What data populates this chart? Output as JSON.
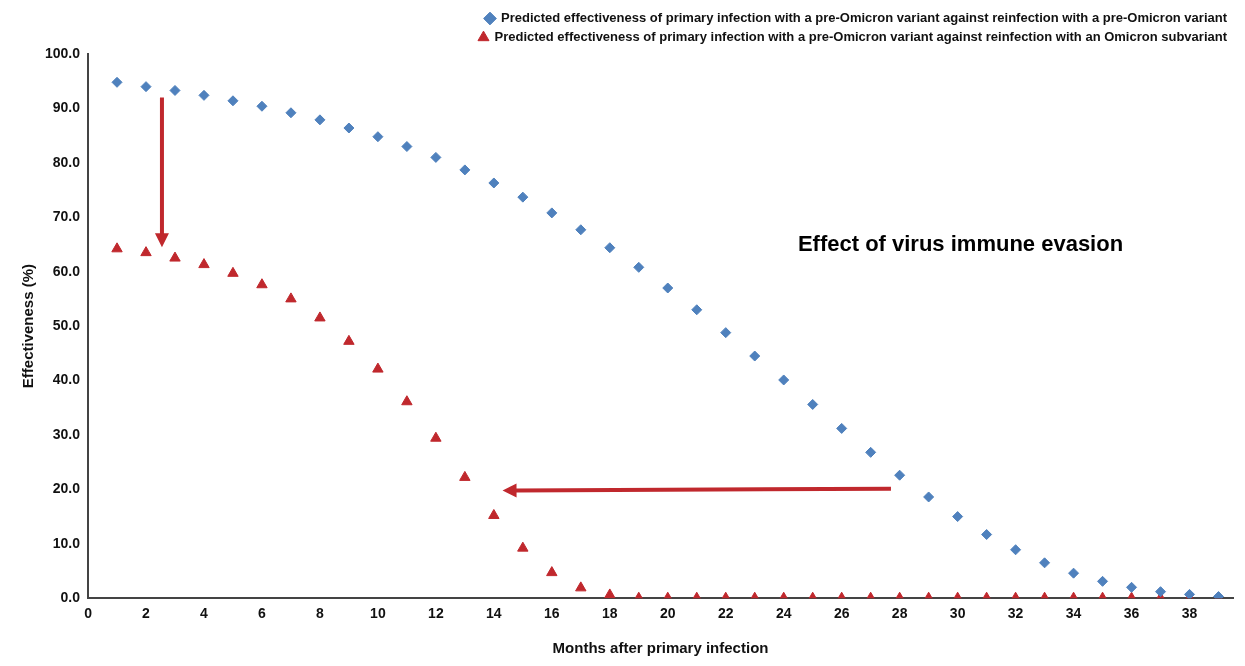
{
  "chart_data": {
    "type": "scatter",
    "xlabel": "Months after primary infection",
    "ylabel": "Effectiveness (%)",
    "x": [
      1,
      2,
      3,
      4,
      5,
      6,
      7,
      8,
      9,
      10,
      11,
      12,
      13,
      14,
      15,
      16,
      17,
      18,
      19,
      20,
      21,
      22,
      23,
      24,
      25,
      26,
      27,
      28,
      29,
      30,
      31,
      32,
      33,
      34,
      35,
      36,
      37,
      38,
      39
    ],
    "series": [
      {
        "name": "Predicted effectiveness of primary infection with a pre-Omicron variant against reinfection with a pre-Omicron variant",
        "color": "#4f81bd",
        "marker": "diamond",
        "values": [
          94.8,
          94.0,
          93.3,
          92.4,
          91.4,
          90.4,
          89.2,
          87.9,
          86.4,
          84.8,
          83.0,
          81.0,
          78.7,
          76.3,
          73.7,
          70.8,
          67.7,
          64.4,
          60.8,
          57.0,
          53.0,
          48.8,
          44.5,
          40.1,
          35.6,
          31.2,
          26.8,
          22.6,
          18.6,
          15.0,
          11.7,
          8.9,
          6.5,
          4.6,
          3.1,
          2.0,
          1.2,
          0.7,
          0.3
        ]
      },
      {
        "name": "Predicted effectiveness of primary infection with a pre-Omicron variant against reinfection with an Omicron subvariant",
        "color": "#c0282d",
        "marker": "triangle",
        "values": [
          64.2,
          63.5,
          62.5,
          61.3,
          59.7,
          57.6,
          55.0,
          51.5,
          47.2,
          42.1,
          36.1,
          29.4,
          22.2,
          15.2,
          9.2,
          4.7,
          1.9,
          0.6,
          0,
          0,
          0,
          0,
          0,
          0,
          0,
          0,
          0,
          0,
          0,
          0,
          0,
          0,
          0,
          0,
          0,
          0,
          0,
          0,
          0
        ]
      }
    ],
    "annotations": [
      "Effect of virus immune evasion"
    ],
    "xlim": [
      0,
      39.5
    ],
    "xticks": [
      0,
      2,
      4,
      6,
      8,
      10,
      12,
      14,
      16,
      18,
      20,
      22,
      24,
      26,
      28,
      30,
      32,
      34,
      36,
      38
    ],
    "ylim": [
      0,
      100
    ],
    "yticks": [
      {
        "value": 0,
        "label": "0.0"
      },
      {
        "value": 10,
        "label": "10.0"
      },
      {
        "value": 20,
        "label": "20.0"
      },
      {
        "value": 30,
        "label": "30.0"
      },
      {
        "value": 40,
        "label": "40.0"
      },
      {
        "value": 50,
        "label": "50.0"
      },
      {
        "value": 60,
        "label": "60.0"
      },
      {
        "value": 70,
        "label": "70.0"
      },
      {
        "value": 80,
        "label": "80.0"
      },
      {
        "value": 90,
        "label": "90.0"
      },
      {
        "value": 100,
        "label": "100.0"
      }
    ],
    "legend": "top right",
    "grid": false
  }
}
